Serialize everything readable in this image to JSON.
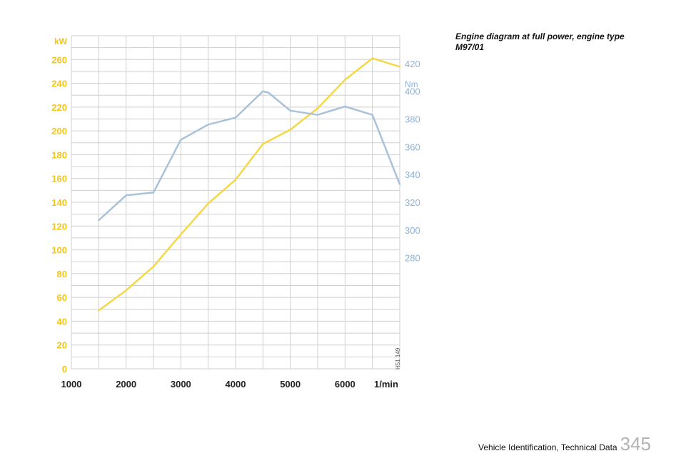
{
  "caption": "Engine diagram at full power, engine type M97/01",
  "footer": {
    "text": "Vehicle Identification, Technical Data",
    "page_number": "345"
  },
  "chart_data": {
    "type": "line",
    "x_ticks": [
      "1000",
      "2000",
      "3000",
      "4000",
      "5000",
      "6000"
    ],
    "x_unit": "1/min",
    "xlim": [
      1000,
      7000
    ],
    "left_axis": {
      "unit": "kW",
      "ticks": [
        0,
        20,
        40,
        60,
        80,
        100,
        120,
        140,
        160,
        180,
        200,
        220,
        240,
        260
      ],
      "ylim": [
        0,
        280
      ],
      "color": "#f5c518"
    },
    "right_axis": {
      "unit": "Nm",
      "ticks": [
        280,
        300,
        320,
        340,
        360,
        380,
        400,
        420
      ],
      "ylim": [
        200,
        440
      ],
      "color": "#8fb3d9"
    },
    "grid": true,
    "side_label": "H51 149",
    "series": [
      {
        "axis": "left",
        "color": "#f5d847",
        "x": [
          1500,
          2000,
          2500,
          3000,
          3500,
          4000,
          4500,
          5000,
          5500,
          6000,
          6500,
          7000
        ],
        "y": [
          49,
          66,
          86,
          113,
          139,
          159,
          189,
          201,
          219,
          243,
          261,
          254
        ]
      },
      {
        "axis": "right",
        "color": "#a9c2da",
        "x": [
          1500,
          2000,
          2500,
          3000,
          3500,
          4000,
          4500,
          4600,
          5000,
          5500,
          6000,
          6500,
          7000
        ],
        "y": [
          307,
          325,
          327,
          365,
          376,
          381,
          400,
          399,
          386,
          383,
          389,
          383,
          333
        ]
      }
    ]
  }
}
